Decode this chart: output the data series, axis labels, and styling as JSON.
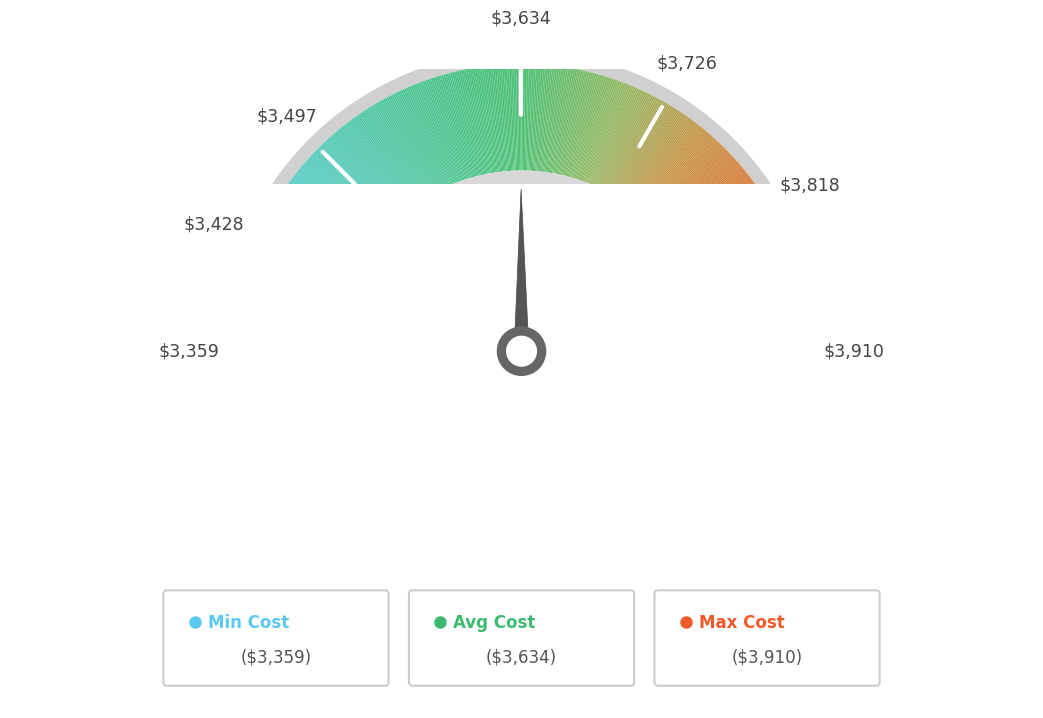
{
  "min_val": 3359,
  "max_val": 3910,
  "avg_val": 3634,
  "tick_labels": [
    "$3,359",
    "$3,428",
    "$3,497",
    "$3,634",
    "$3,726",
    "$3,818",
    "$3,910"
  ],
  "tick_values": [
    3359,
    3428,
    3497,
    3634,
    3726,
    3818,
    3910
  ],
  "legend_items": [
    {
      "label": "Min Cost",
      "value": "($3,359)",
      "color": "#5bc8f0"
    },
    {
      "label": "Avg Cost",
      "value": "($3,634)",
      "color": "#3dba6f"
    },
    {
      "label": "Max Cost",
      "value": "($3,910)",
      "color": "#f05a28"
    }
  ],
  "background_color": "#ffffff",
  "color_stops": [
    [
      0.0,
      [
        0.42,
        0.72,
        0.92
      ]
    ],
    [
      0.2,
      [
        0.35,
        0.8,
        0.78
      ]
    ],
    [
      0.42,
      [
        0.28,
        0.76,
        0.52
      ]
    ],
    [
      0.5,
      [
        0.3,
        0.75,
        0.45
      ]
    ],
    [
      0.62,
      [
        0.58,
        0.72,
        0.38
      ]
    ],
    [
      0.72,
      [
        0.78,
        0.58,
        0.28
      ]
    ],
    [
      0.85,
      [
        0.88,
        0.42,
        0.18
      ]
    ],
    [
      1.0,
      [
        0.93,
        0.35,
        0.14
      ]
    ]
  ]
}
